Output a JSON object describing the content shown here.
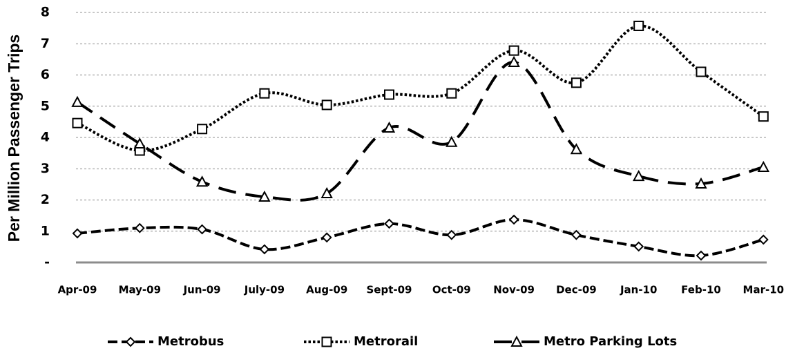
{
  "chart_data": {
    "type": "line",
    "y_label": "Per Million Passenger Trips",
    "categories": [
      "Apr-09",
      "May-09",
      "Jun-09",
      "July-09",
      "Aug-09",
      "Sept-09",
      "Oct-09",
      "Nov-09",
      "Dec-09",
      "Jan-10",
      "Feb-10",
      "Mar-10"
    ],
    "series": [
      {
        "name": "Metrobus",
        "color": "#000000",
        "line_style": "dashed",
        "marker": "diamond",
        "values": [
          0.93,
          1.1,
          1.06,
          0.42,
          0.8,
          1.24,
          0.88,
          1.37,
          0.88,
          0.51,
          0.22,
          0.73
        ]
      },
      {
        "name": "Metrorail",
        "color": "#000000",
        "line_style": "dotted",
        "marker": "square",
        "values": [
          4.46,
          3.58,
          4.27,
          5.41,
          5.04,
          5.37,
          5.41,
          6.78,
          5.75,
          7.57,
          6.1,
          4.67
        ]
      },
      {
        "name": "Metro Parking Lots",
        "color": "#000000",
        "line_style": "long-dashed",
        "marker": "triangle",
        "values": [
          5.13,
          3.8,
          2.58,
          2.1,
          2.21,
          4.31,
          3.85,
          6.41,
          3.62,
          2.76,
          2.52,
          3.05
        ]
      }
    ],
    "ylim": [
      0,
      8
    ],
    "yticks": [
      {
        "value": 0,
        "label": "-"
      },
      1,
      2,
      3,
      4,
      5,
      6,
      7,
      8
    ],
    "grid": true,
    "smooth": true,
    "legend": "bottom"
  }
}
